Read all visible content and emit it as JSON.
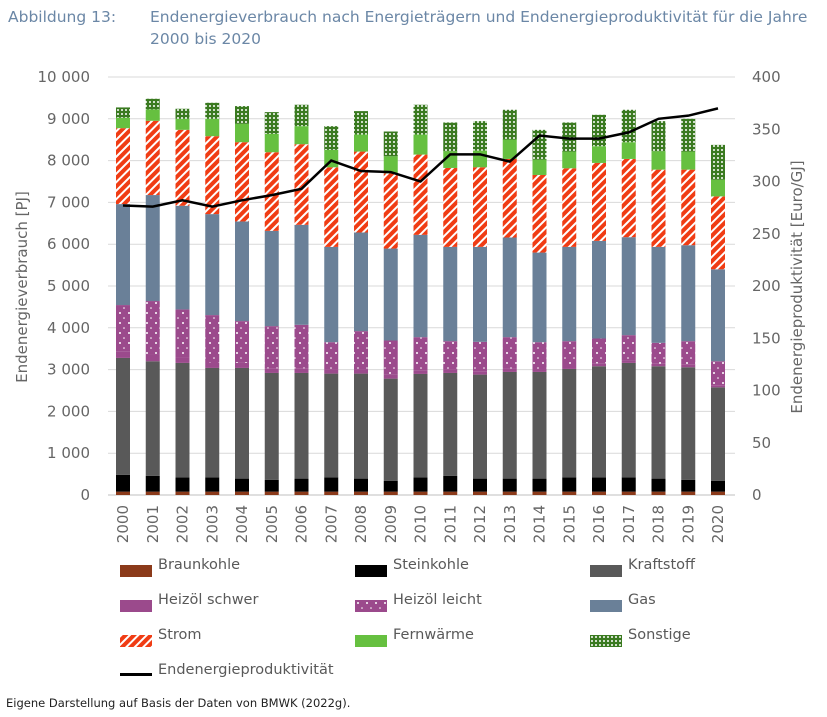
{
  "title": {
    "label": "Abbildung 13:",
    "text": "Endenergieverbrauch nach Energieträgern und Endenergieproduktivität für die Jahre 2000 bis 2020"
  },
  "footer": "Eigene Darstellung auf Basis der Daten von BMWK (2022g).",
  "chart_data": {
    "type": "bar",
    "stacked": true,
    "ylabel": "Endenergieverbrauch [PJ]",
    "y2label": "Endenergieproduktivität [Euro/GJ]",
    "ylim": [
      0,
      10000
    ],
    "y2lim": [
      0,
      400
    ],
    "yticks": [
      "0",
      "1 000",
      "2 000",
      "3 000",
      "4 000",
      "5 000",
      "6 000",
      "7 000",
      "8 000",
      "9 000",
      "10 000"
    ],
    "y2ticks": [
      "0",
      "50",
      "100",
      "150",
      "200",
      "250",
      "300",
      "350",
      "400"
    ],
    "grid": true,
    "legend": "bottom",
    "categories": [
      "2000",
      "2001",
      "2002",
      "2003",
      "2004",
      "2005",
      "2006",
      "2007",
      "2008",
      "2009",
      "2010",
      "2011",
      "2012",
      "2013",
      "2014",
      "2015",
      "2016",
      "2017",
      "2018",
      "2019",
      "2020"
    ],
    "series": [
      {
        "name": "Braunkohle",
        "color": "#8b3a1a",
        "pattern": "solid",
        "values": [
          80,
          80,
          80,
          80,
          80,
          80,
          80,
          80,
          80,
          80,
          80,
          80,
          80,
          80,
          80,
          80,
          80,
          80,
          80,
          80,
          80
        ]
      },
      {
        "name": "Steinkohle",
        "color": "#000000",
        "pattern": "solid",
        "values": [
          400,
          376,
          344,
          344,
          312,
          280,
          312,
          344,
          312,
          256,
          344,
          376,
          312,
          312,
          312,
          344,
          344,
          344,
          312,
          280,
          256
        ]
      },
      {
        "name": "Kraftstoff",
        "color": "#595959",
        "pattern": "solid",
        "values": [
          2800,
          2744,
          2736,
          2616,
          2648,
          2560,
          2528,
          2480,
          2512,
          2448,
          2472,
          2464,
          2488,
          2552,
          2552,
          2592,
          2656,
          2736,
          2688,
          2696,
          2240
        ]
      },
      {
        "name": "Heizöl schwer",
        "color": "#9b4a8c",
        "pattern": "solid",
        "values": [
          160,
          150,
          140,
          130,
          120,
          110,
          110,
          100,
          100,
          90,
          90,
          80,
          80,
          80,
          70,
          70,
          70,
          60,
          60,
          60,
          50
        ]
      },
      {
        "name": "Heizöl leicht",
        "color": "#9b4a8c",
        "pattern": "dots-sparse",
        "values": [
          1104,
          1290,
          1140,
          1134,
          1000,
          1010,
          1042,
          652,
          916,
          822,
          790,
          680,
          704,
          752,
          642,
          594,
          594,
          604,
          500,
          564,
          574
        ]
      },
      {
        "name": "Gas",
        "color": "#6a8098",
        "pattern": "solid",
        "values": [
          2416,
          2536,
          2480,
          2416,
          2384,
          2280,
          2392,
          2280,
          2360,
          2200,
          2448,
          2256,
          2272,
          2384,
          2144,
          2256,
          2336,
          2344,
          2296,
          2296,
          2200
        ]
      },
      {
        "name": "Strom",
        "color": "#f03c14",
        "pattern": "stripes",
        "values": [
          1816,
          1776,
          1816,
          1864,
          1896,
          1880,
          1928,
          1904,
          1936,
          1800,
          1920,
          1888,
          1904,
          1880,
          1856,
          1880,
          1864,
          1872,
          1848,
          1808,
          1744
        ]
      },
      {
        "name": "Fernwärme",
        "color": "#66c040",
        "pattern": "solid",
        "values": [
          248,
          272,
          264,
          416,
          440,
          440,
          432,
          416,
          408,
          408,
          480,
          400,
          400,
          464,
          368,
          400,
          400,
          400,
          440,
          432,
          400
        ]
      },
      {
        "name": "Sonstige",
        "color": "#3a7a20",
        "pattern": "dots-dense",
        "values": [
          248,
          256,
          240,
          384,
          424,
          520,
          512,
          568,
          560,
          592,
          712,
          688,
          704,
          712,
          712,
          696,
          752,
          776,
          720,
          784,
          832
        ]
      }
    ],
    "line": {
      "name": "Endenergieproduktivität",
      "axis": "right",
      "color": "#000000",
      "values": [
        277,
        276,
        282,
        276,
        282,
        287,
        293,
        320,
        310,
        309,
        300,
        326,
        326,
        319,
        344,
        341,
        341,
        347,
        360,
        363,
        370
      ]
    }
  }
}
